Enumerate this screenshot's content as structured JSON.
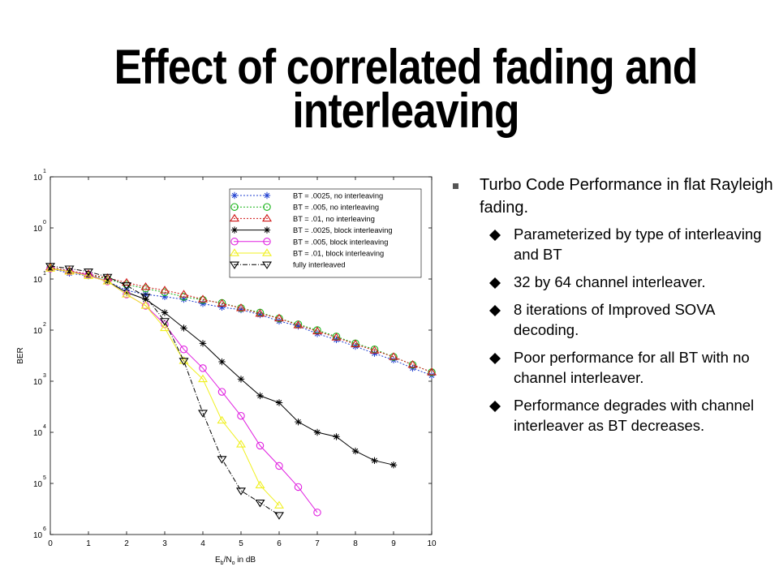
{
  "slide": {
    "title_line1": "Effect of correlated fading and",
    "title_line2": "interleaving"
  },
  "bullets": {
    "main": "Turbo Code Performance in flat Rayleigh fading.",
    "sub": [
      "Parameterized by type of interleaving and BT",
      "32 by 64 channel interleaver.",
      "8 iterations of Improved SOVA decoding.",
      "Poor performance for all BT with no channel interleaver.",
      "Performance degrades with channel interleaver as BT decreases."
    ]
  },
  "chart_data": {
    "type": "line",
    "xlabel": "E_b/N_o in dB",
    "ylabel": "BER",
    "xlim": [
      0,
      10
    ],
    "ylim_exp": [
      -6,
      1
    ],
    "y_scale": "log",
    "x_ticks": [
      "0",
      "1",
      "2",
      "3",
      "4",
      "5",
      "6",
      "7",
      "8",
      "9",
      "10"
    ],
    "y_ticks": [
      {
        "base": "10",
        "exp": "1"
      },
      {
        "base": "10",
        "exp": "0"
      },
      {
        "base": "10",
        "exp": "1"
      },
      {
        "base": "10",
        "exp": "2"
      },
      {
        "base": "10",
        "exp": "3"
      },
      {
        "base": "10",
        "exp": "4"
      },
      {
        "base": "10",
        "exp": "5"
      },
      {
        "base": "10",
        "exp": "6"
      }
    ],
    "legend_position": "top-right",
    "series": [
      {
        "name": "BT = .0025, no interleaving",
        "color": "#1f3fd0",
        "marker": "star",
        "dash": "2,2",
        "x": [
          0,
          0.5,
          1,
          1.5,
          2,
          2.5,
          3,
          3.5,
          4,
          4.5,
          5,
          5.5,
          6,
          6.5,
          7,
          7.5,
          8,
          8.5,
          9,
          9.5,
          10
        ],
        "y": [
          0.16,
          0.13,
          0.115,
          0.09,
          0.06,
          0.05,
          0.045,
          0.04,
          0.033,
          0.028,
          0.025,
          0.02,
          0.015,
          0.012,
          0.0085,
          0.0065,
          0.0048,
          0.0035,
          0.0026,
          0.0018,
          0.0013
        ]
      },
      {
        "name": "BT = .005, no interleaving",
        "color": "#18b418",
        "marker": "circle",
        "dash": "2,2",
        "x": [
          0,
          0.5,
          1,
          1.5,
          2,
          2.5,
          3,
          3.5,
          4,
          4.5,
          5,
          5.5,
          6,
          6.5,
          7,
          7.5,
          8,
          8.5,
          9,
          9.5,
          10
        ],
        "y": [
          0.165,
          0.14,
          0.12,
          0.1,
          0.078,
          0.065,
          0.055,
          0.045,
          0.039,
          0.034,
          0.027,
          0.022,
          0.017,
          0.013,
          0.01,
          0.0075,
          0.0055,
          0.0042,
          0.003,
          0.0021,
          0.0015
        ]
      },
      {
        "name": "BT = .01, no interleaving",
        "color": "#d01818",
        "marker": "triangle",
        "dash": "2,2",
        "x": [
          0,
          0.5,
          1,
          1.5,
          2,
          2.5,
          3,
          3.5,
          4,
          4.5,
          5,
          5.5,
          6,
          6.5,
          7,
          7.5,
          8,
          8.5,
          9,
          9.5,
          10
        ],
        "y": [
          0.17,
          0.145,
          0.125,
          0.105,
          0.085,
          0.07,
          0.06,
          0.05,
          0.04,
          0.033,
          0.027,
          0.021,
          0.017,
          0.0125,
          0.0095,
          0.0072,
          0.0053,
          0.004,
          0.003,
          0.0021,
          0.0015
        ]
      },
      {
        "name": "BT = .0025, block interleaving",
        "color": "#000000",
        "marker": "star",
        "dash": "",
        "x": [
          0,
          0.5,
          1,
          1.5,
          2,
          2.5,
          3,
          3.5,
          4,
          4.5,
          5,
          5.5,
          6,
          6.5,
          7,
          7.5,
          8,
          8.5,
          9
        ],
        "y": [
          0.16,
          0.14,
          0.12,
          0.09,
          0.055,
          0.04,
          0.022,
          0.011,
          0.0055,
          0.0024,
          0.0011,
          0.00052,
          0.00038,
          0.00016,
          0.0001,
          8.2e-05,
          4.3e-05,
          2.8e-05,
          2.3e-05
        ]
      },
      {
        "name": "BT = .005, block interleaving",
        "color": "#e020e0",
        "marker": "circle",
        "dash": "",
        "x": [
          0,
          0.5,
          1,
          1.5,
          2,
          2.5,
          3,
          3.5,
          4,
          4.5,
          5,
          5.5,
          6,
          6.5,
          7
        ],
        "y": [
          0.16,
          0.14,
          0.12,
          0.09,
          0.05,
          0.03,
          0.013,
          0.0042,
          0.0018,
          0.00062,
          0.00021,
          5.5e-05,
          2.2e-05,
          8.5e-06,
          2.7e-06
        ]
      },
      {
        "name": "BT = .01, block interleaving",
        "color": "#f0f020",
        "marker": "triangle",
        "dash": "",
        "x": [
          0,
          0.5,
          1,
          1.5,
          2,
          2.5,
          3,
          3.5,
          4,
          4.5,
          5,
          5.5,
          6
        ],
        "y": [
          0.16,
          0.14,
          0.115,
          0.09,
          0.05,
          0.03,
          0.011,
          0.0025,
          0.0011,
          0.00017,
          5.8e-05,
          9.2e-06,
          3.7e-06
        ]
      },
      {
        "name": "fully interleaved",
        "color": "#000000",
        "marker": "triangle-down",
        "dash": "6,2,1,2",
        "x": [
          0,
          0.5,
          1,
          1.5,
          2,
          2.5,
          3,
          3.5,
          4,
          4.5,
          5,
          5.5,
          6
        ],
        "y": [
          0.18,
          0.16,
          0.14,
          0.11,
          0.075,
          0.045,
          0.015,
          0.0025,
          0.00024,
          3e-05,
          7.2e-06,
          4.2e-06,
          2.4e-06
        ]
      }
    ]
  },
  "colors": {
    "main_bullet_square": "#555555",
    "sub_bullet_diamond": "#000000"
  }
}
